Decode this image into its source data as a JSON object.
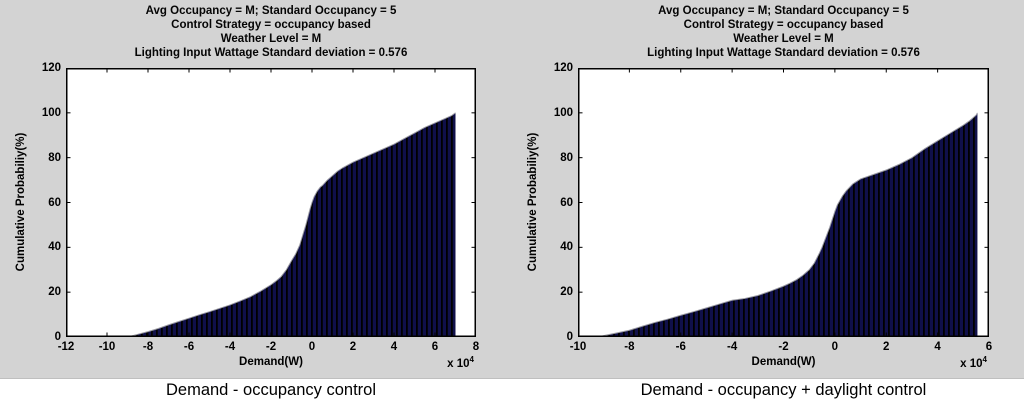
{
  "figure": {
    "bg_color": "#d3d3d3",
    "panel_bg": "#ffffff",
    "bar_fill": "#10104a",
    "bar_edge": "#000000",
    "curve_edge": "#9a9aa2",
    "axis_color": "#000000"
  },
  "plots": [
    {
      "title_lines": [
        "Avg Occupancy = M; Standard Occupancy = 5",
        "Control Strategy = occupancy based",
        "Weather Level = M",
        "Lighting Input Wattage Standard deviation = 0.576"
      ],
      "ylabel": "Cumulative Probabiliy(%)",
      "xlabel": "Demand(W)",
      "x_mult_base": "x 10",
      "x_mult_exp": "4",
      "caption": "Demand - occupancy control"
    },
    {
      "title_lines": [
        "Avg Occupancy = M; Standard Occupancy = 5",
        "Control Strategy = occupancy based",
        "Weather Level = M",
        "Lighting Input Wattage Standard deviation = 0.576"
      ],
      "ylabel": "Cumulative Probabiliy(%)",
      "xlabel": "Demand(W)",
      "x_mult_base": "x 10",
      "x_mult_exp": "4",
      "caption": "Demand - occupancy + daylight control"
    }
  ],
  "chart_data": [
    {
      "type": "area",
      "title": "Avg Occupancy = M; Standard Occupancy = 5; Control Strategy = occupancy based; Weather Level = M; Lighting Input Wattage Standard deviation = 0.576",
      "xlabel": "Demand(W) x 10^4",
      "ylabel": "Cumulative Probabiliy(%)",
      "xlim": [
        -12,
        8
      ],
      "ylim": [
        0,
        120
      ],
      "xticks": [
        -12,
        -10,
        -8,
        -6,
        -4,
        -2,
        0,
        2,
        4,
        6,
        8
      ],
      "yticks": [
        0,
        20,
        40,
        60,
        80,
        100,
        120
      ],
      "grid": false,
      "legend": null,
      "x": [
        -9,
        -8.5,
        -8,
        -7.5,
        -7,
        -6.5,
        -6,
        -5.5,
        -5,
        -4.5,
        -4,
        -3.5,
        -3,
        -2.5,
        -2,
        -1.75,
        -1.5,
        -1.25,
        -1,
        -0.8,
        -0.6,
        -0.5,
        -0.4,
        -0.3,
        -0.2,
        -0.1,
        0,
        0.1,
        0.25,
        0.4,
        0.5,
        0.75,
        1,
        1.25,
        1.5,
        2,
        2.5,
        3,
        3.5,
        4,
        4.5,
        5,
        5.5,
        6,
        6.5,
        6.8,
        7
      ],
      "y": [
        0,
        1.2,
        2.4,
        3.8,
        5.4,
        6.9,
        8.4,
        9.9,
        11.3,
        12.8,
        14.3,
        16.1,
        18,
        20.5,
        23.3,
        25,
        27,
        30,
        34,
        37,
        41,
        44,
        47,
        50,
        53.5,
        57,
        60,
        62.5,
        65,
        66.8,
        67.5,
        70,
        72,
        74,
        75.5,
        78,
        80,
        82,
        84,
        86,
        88.5,
        91,
        93.5,
        95.5,
        97.5,
        98.7,
        100
      ]
    },
    {
      "type": "area",
      "title": "Avg Occupancy = M; Standard Occupancy = 5; Control Strategy = occupancy based; Weather Level = M; Lighting Input Wattage Standard deviation = 0.576",
      "xlabel": "Demand(W) x 10^4",
      "ylabel": "Cumulative Probabiliy(%)",
      "xlim": [
        -10,
        6
      ],
      "ylim": [
        0,
        120
      ],
      "xticks": [
        -10,
        -8,
        -6,
        -4,
        -2,
        0,
        2,
        4,
        6
      ],
      "yticks": [
        0,
        20,
        40,
        60,
        80,
        100,
        120
      ],
      "grid": false,
      "legend": null,
      "x": [
        -9.2,
        -9,
        -8.5,
        -8,
        -7.5,
        -7,
        -6.5,
        -6,
        -5.5,
        -5,
        -4.5,
        -4,
        -3.5,
        -3,
        -2.5,
        -2,
        -1.75,
        -1.5,
        -1.25,
        -1,
        -0.8,
        -0.6,
        -0.5,
        -0.4,
        -0.3,
        -0.2,
        -0.1,
        0,
        0.1,
        0.2,
        0.3,
        0.45,
        0.7,
        1,
        1.5,
        2,
        2.5,
        3,
        3.5,
        4,
        4.5,
        5,
        5.25,
        5.5,
        5.55
      ],
      "y": [
        0,
        0.6,
        1.8,
        3,
        4.8,
        6.5,
        8,
        9.7,
        11.3,
        13,
        14.7,
        16.4,
        17.2,
        18.5,
        20.5,
        22.7,
        24,
        25.5,
        27.5,
        30,
        33,
        37.5,
        40,
        43,
        46,
        49,
        52.5,
        56,
        59,
        61,
        63,
        65.3,
        68.3,
        70.5,
        72.5,
        74.5,
        77,
        80,
        84,
        87.5,
        91,
        94.5,
        96.5,
        99,
        100
      ]
    }
  ]
}
